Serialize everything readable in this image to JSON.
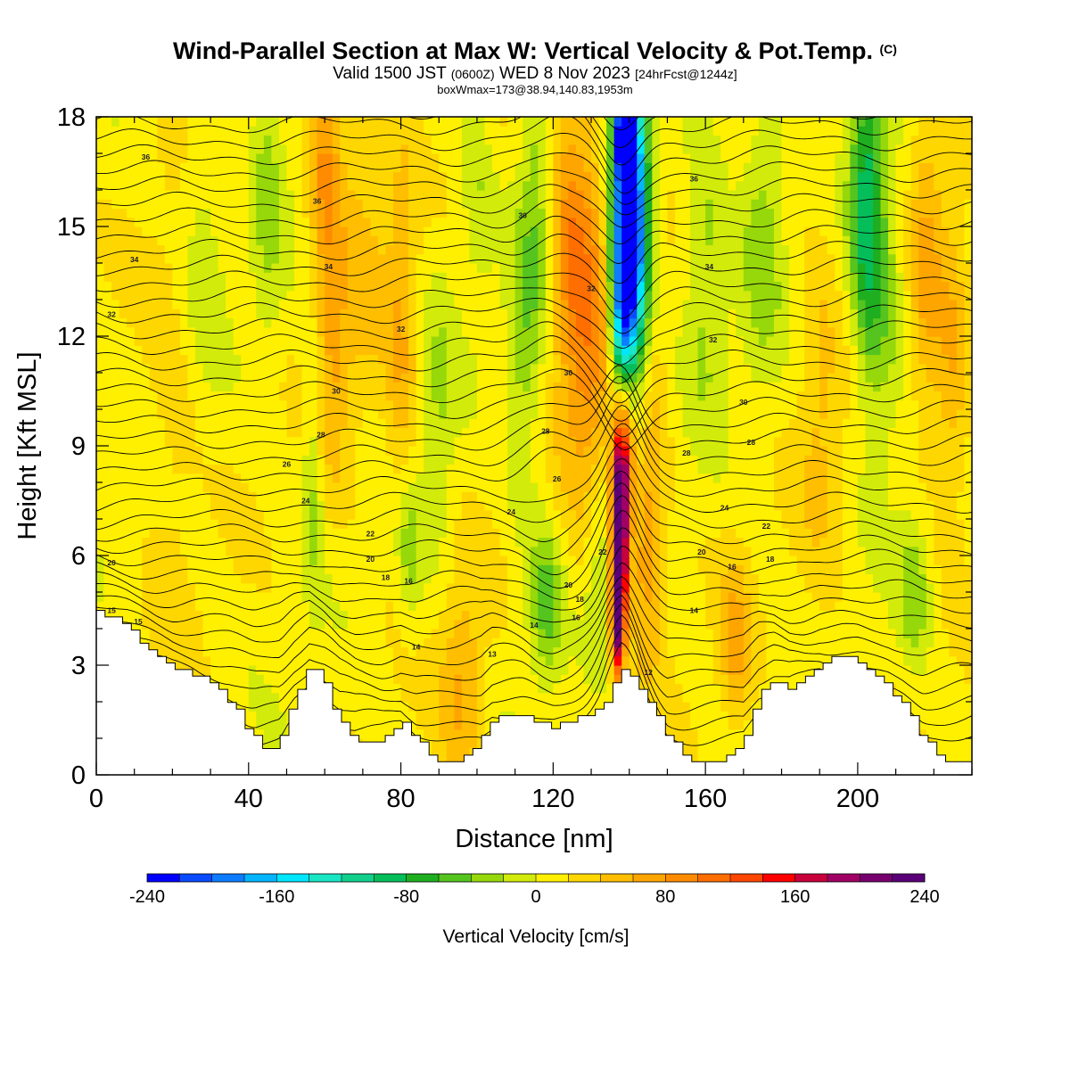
{
  "title": {
    "main": "Wind-Parallel Section at Max W: Vertical Velocity & Pot.Temp.",
    "copyright": "(C)",
    "valid_prefix": "Valid 1500 JST",
    "valid_utc": "(0600Z)",
    "valid_date": "WED 8 Nov 2023",
    "forecast": "[24hrFcst@1244z]",
    "boxmax": "boxWmax=173@38.94,140.83,1953m"
  },
  "chart_data": {
    "type": "heatmap",
    "xlabel": "Distance [nm]",
    "ylabel": "Height [Kft MSL]",
    "xlim": [
      0,
      230
    ],
    "ylim": [
      0,
      18
    ],
    "x_ticks": [
      0,
      40,
      80,
      120,
      160,
      200
    ],
    "y_ticks": [
      0,
      3,
      6,
      9,
      12,
      15,
      18
    ],
    "fill_field": "Vertical Velocity [cm/s]",
    "contour_field": "Potential temperature (labelled contours)",
    "colorbar": {
      "label": "Vertical Velocity [cm/s]",
      "min": -240,
      "max": 240,
      "step": 20,
      "tick_labels": [
        "-240",
        "-160",
        "-80",
        "0",
        "80",
        "160",
        "240"
      ],
      "colors": [
        "#0000ff",
        "#0a4bff",
        "#0d7cff",
        "#04b4ff",
        "#00e6ff",
        "#18e6c4",
        "#10d08c",
        "#05be5a",
        "#1fae1f",
        "#55c41f",
        "#96d80a",
        "#d2eb0a",
        "#fff000",
        "#ffd700",
        "#ffbe00",
        "#ffa500",
        "#ff8c00",
        "#ff6e00",
        "#ff4600",
        "#ff0000",
        "#c8003c",
        "#a00064",
        "#78006e",
        "#5a0078"
      ]
    },
    "terrain_height_kft": [
      {
        "x": 0,
        "h": 4.5
      },
      {
        "x": 4,
        "h": 4.3
      },
      {
        "x": 8,
        "h": 4.0
      },
      {
        "x": 12,
        "h": 3.6
      },
      {
        "x": 16,
        "h": 3.2
      },
      {
        "x": 20,
        "h": 2.9
      },
      {
        "x": 25,
        "h": 2.8
      },
      {
        "x": 30,
        "h": 2.5
      },
      {
        "x": 35,
        "h": 2.0
      },
      {
        "x": 40,
        "h": 1.2
      },
      {
        "x": 44,
        "h": 0.7
      },
      {
        "x": 48,
        "h": 0.9
      },
      {
        "x": 52,
        "h": 2.2
      },
      {
        "x": 56,
        "h": 3.1
      },
      {
        "x": 60,
        "h": 2.4
      },
      {
        "x": 64,
        "h": 1.4
      },
      {
        "x": 68,
        "h": 1.0
      },
      {
        "x": 72,
        "h": 0.8
      },
      {
        "x": 76,
        "h": 1.1
      },
      {
        "x": 80,
        "h": 1.5
      },
      {
        "x": 84,
        "h": 1.0
      },
      {
        "x": 88,
        "h": 0.4
      },
      {
        "x": 92,
        "h": 0.3
      },
      {
        "x": 96,
        "h": 0.4
      },
      {
        "x": 100,
        "h": 0.8
      },
      {
        "x": 104,
        "h": 1.6
      },
      {
        "x": 108,
        "h": 1.6
      },
      {
        "x": 112,
        "h": 1.6
      },
      {
        "x": 116,
        "h": 1.4
      },
      {
        "x": 120,
        "h": 1.3
      },
      {
        "x": 124,
        "h": 1.5
      },
      {
        "x": 128,
        "h": 1.6
      },
      {
        "x": 132,
        "h": 1.8
      },
      {
        "x": 135,
        "h": 2.3
      },
      {
        "x": 138,
        "h": 2.9
      },
      {
        "x": 142,
        "h": 2.4
      },
      {
        "x": 146,
        "h": 1.8
      },
      {
        "x": 150,
        "h": 1.0
      },
      {
        "x": 154,
        "h": 0.6
      },
      {
        "x": 158,
        "h": 0.3
      },
      {
        "x": 162,
        "h": 0.3
      },
      {
        "x": 166,
        "h": 0.5
      },
      {
        "x": 170,
        "h": 1.0
      },
      {
        "x": 174,
        "h": 2.2
      },
      {
        "x": 178,
        "h": 2.6
      },
      {
        "x": 182,
        "h": 2.3
      },
      {
        "x": 186,
        "h": 2.6
      },
      {
        "x": 190,
        "h": 3.1
      },
      {
        "x": 196,
        "h": 3.2
      },
      {
        "x": 200,
        "h": 3.1
      },
      {
        "x": 204,
        "h": 2.7
      },
      {
        "x": 208,
        "h": 2.4
      },
      {
        "x": 212,
        "h": 1.9
      },
      {
        "x": 216,
        "h": 1.2
      },
      {
        "x": 220,
        "h": 0.6
      },
      {
        "x": 224,
        "h": 0.3
      },
      {
        "x": 228,
        "h": 0.3
      },
      {
        "x": 230,
        "h": 1.0
      }
    ],
    "w_features": [
      {
        "x": 137,
        "z": 4.6,
        "w": 225,
        "sx": 1.2,
        "sz": 1.3
      },
      {
        "x": 137.5,
        "z": 6.8,
        "w": 190,
        "sx": 1.4,
        "sz": 1.6
      },
      {
        "x": 138.5,
        "z": 8.8,
        "w": 130,
        "sx": 2.0,
        "sz": 1.6
      },
      {
        "x": 140,
        "z": 15.5,
        "w": -200,
        "sx": 2.8,
        "sz": 2.3
      },
      {
        "x": 139,
        "z": 17.6,
        "w": -240,
        "sx": 2.0,
        "sz": 1.0
      },
      {
        "x": 138,
        "z": 12.5,
        "w": -140,
        "sx": 2.2,
        "sz": 1.8
      },
      {
        "x": 142,
        "z": 14,
        "w": -120,
        "sx": 4,
        "sz": 3
      },
      {
        "x": 130,
        "z": 12,
        "w": 70,
        "sx": 5,
        "sz": 4
      },
      {
        "x": 124,
        "z": 15,
        "w": 60,
        "sx": 4,
        "sz": 3
      },
      {
        "x": 146,
        "z": 11,
        "w": 50,
        "sx": 3,
        "sz": 4
      },
      {
        "x": 144,
        "z": 6,
        "w": 50,
        "sx": 3,
        "sz": 2
      },
      {
        "x": 132,
        "z": 6,
        "w": -40,
        "sx": 3,
        "sz": 2
      },
      {
        "x": 118,
        "z": 4.8,
        "w": -60,
        "sx": 3,
        "sz": 1.5
      },
      {
        "x": 112,
        "z": 11,
        "w": -40,
        "sx": 3,
        "sz": 3
      },
      {
        "x": 60,
        "z": 17,
        "w": 65,
        "sx": 3,
        "sz": 2
      },
      {
        "x": 62,
        "z": 12,
        "w": 50,
        "sx": 3,
        "sz": 3
      },
      {
        "x": 45,
        "z": 16,
        "w": -35,
        "sx": 3,
        "sz": 3
      },
      {
        "x": 57,
        "z": 8,
        "w": -40,
        "sx": 2,
        "sz": 2
      },
      {
        "x": 82,
        "z": 6,
        "w": -45,
        "sx": 2.5,
        "sz": 1.5
      },
      {
        "x": 80,
        "z": 12,
        "w": 45,
        "sx": 3,
        "sz": 4
      },
      {
        "x": 90,
        "z": 10,
        "w": -30,
        "sx": 3,
        "sz": 3
      },
      {
        "x": 96,
        "z": 2.3,
        "w": 50,
        "sx": 4,
        "sz": 2
      },
      {
        "x": 100,
        "z": 16,
        "w": -30,
        "sx": 3,
        "sz": 2
      },
      {
        "x": 116,
        "z": 16,
        "w": -45,
        "sx": 3,
        "sz": 3
      },
      {
        "x": 160,
        "z": 14,
        "w": -40,
        "sx": 4,
        "sz": 3
      },
      {
        "x": 168,
        "z": 3.5,
        "w": 55,
        "sx": 3,
        "sz": 1.5
      },
      {
        "x": 175,
        "z": 15,
        "w": -40,
        "sx": 4,
        "sz": 3
      },
      {
        "x": 202,
        "z": 16,
        "w": -85,
        "sx": 3,
        "sz": 3
      },
      {
        "x": 206,
        "z": 13,
        "w": -50,
        "sx": 4,
        "sz": 3
      },
      {
        "x": 215,
        "z": 5,
        "w": -45,
        "sx": 3,
        "sz": 1.5
      },
      {
        "x": 218,
        "z": 14,
        "w": 45,
        "sx": 3,
        "sz": 4
      },
      {
        "x": 225,
        "z": 11,
        "w": 45,
        "sx": 3,
        "sz": 3
      },
      {
        "x": 28,
        "z": 15,
        "w": -25,
        "sx": 4,
        "sz": 3
      },
      {
        "x": 20,
        "z": 10,
        "w": 20,
        "sx": 5,
        "sz": 4
      },
      {
        "x": 70,
        "z": 15,
        "w": 30,
        "sx": 4,
        "sz": 4
      },
      {
        "x": 190,
        "z": 10,
        "w": 30,
        "sx": 4,
        "sz": 4
      }
    ],
    "contour_labels": [
      {
        "x": 13,
        "z": 16.9,
        "t": "36"
      },
      {
        "x": 58,
        "z": 15.7,
        "t": "36"
      },
      {
        "x": 112,
        "z": 15.3,
        "t": "36"
      },
      {
        "x": 157,
        "z": 16.3,
        "t": "36"
      },
      {
        "x": 10,
        "z": 14.1,
        "t": "34"
      },
      {
        "x": 61,
        "z": 13.9,
        "t": "34"
      },
      {
        "x": 161,
        "z": 13.9,
        "t": "34"
      },
      {
        "x": 4,
        "z": 12.6,
        "t": "32"
      },
      {
        "x": 80,
        "z": 12.2,
        "t": "32"
      },
      {
        "x": 130,
        "z": 13.3,
        "t": "32"
      },
      {
        "x": 162,
        "z": 11.9,
        "t": "32"
      },
      {
        "x": 63,
        "z": 10.5,
        "t": "30"
      },
      {
        "x": 124,
        "z": 11,
        "t": "30"
      },
      {
        "x": 170,
        "z": 10.2,
        "t": "30"
      },
      {
        "x": 59,
        "z": 9.3,
        "t": "28"
      },
      {
        "x": 118,
        "z": 9.4,
        "t": "28"
      },
      {
        "x": 155,
        "z": 8.8,
        "t": "28"
      },
      {
        "x": 172,
        "z": 9.1,
        "t": "28"
      },
      {
        "x": 50,
        "z": 8.5,
        "t": "26"
      },
      {
        "x": 121,
        "z": 8.1,
        "t": "26"
      },
      {
        "x": 55,
        "z": 7.5,
        "t": "24"
      },
      {
        "x": 109,
        "z": 7.2,
        "t": "24"
      },
      {
        "x": 165,
        "z": 7.3,
        "t": "24"
      },
      {
        "x": 72,
        "z": 6.6,
        "t": "22"
      },
      {
        "x": 133,
        "z": 6.1,
        "t": "22"
      },
      {
        "x": 176,
        "z": 6.8,
        "t": "22"
      },
      {
        "x": 4,
        "z": 5.8,
        "t": "20"
      },
      {
        "x": 72,
        "z": 5.9,
        "t": "20"
      },
      {
        "x": 124,
        "z": 5.2,
        "t": "20"
      },
      {
        "x": 159,
        "z": 6.1,
        "t": "20"
      },
      {
        "x": 76,
        "z": 5.4,
        "t": "18"
      },
      {
        "x": 127,
        "z": 4.8,
        "t": "18"
      },
      {
        "x": 177,
        "z": 5.9,
        "t": "18"
      },
      {
        "x": 82,
        "z": 5.3,
        "t": "16"
      },
      {
        "x": 126,
        "z": 4.3,
        "t": "16"
      },
      {
        "x": 167,
        "z": 5.7,
        "t": "16"
      },
      {
        "x": 4,
        "z": 4.5,
        "t": "15"
      },
      {
        "x": 11,
        "z": 4.2,
        "t": "15"
      },
      {
        "x": 115,
        "z": 4.1,
        "t": "14"
      },
      {
        "x": 84,
        "z": 3.5,
        "t": "14"
      },
      {
        "x": 157,
        "z": 4.5,
        "t": "14"
      },
      {
        "x": 104,
        "z": 3.3,
        "t": "13"
      },
      {
        "x": 145,
        "z": 2.8,
        "t": "12"
      }
    ]
  }
}
